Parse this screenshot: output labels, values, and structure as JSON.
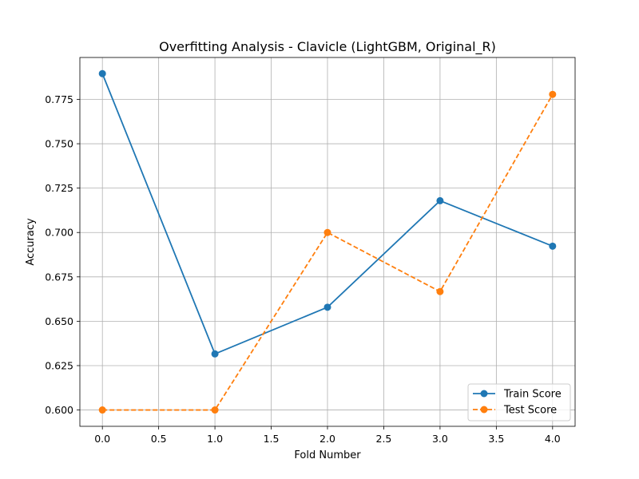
{
  "chart_data": {
    "type": "line",
    "title": "Overfitting Analysis - Clavicle (LightGBM, Original_R)",
    "xlabel": "Fold Number",
    "ylabel": "Accuracy",
    "xlim": [
      -0.2,
      4.2
    ],
    "ylim": [
      0.5908,
      0.7986
    ],
    "xticks": [
      0.0,
      0.5,
      1.0,
      1.5,
      2.0,
      2.5,
      3.0,
      3.5,
      4.0
    ],
    "xtick_labels": [
      "0.0",
      "0.5",
      "1.0",
      "1.5",
      "2.0",
      "2.5",
      "3.0",
      "3.5",
      "4.0"
    ],
    "yticks": [
      0.6,
      0.625,
      0.65,
      0.675,
      0.7,
      0.725,
      0.75,
      0.775
    ],
    "ytick_labels": [
      "0.600",
      "0.625",
      "0.650",
      "0.675",
      "0.700",
      "0.725",
      "0.750",
      "0.775"
    ],
    "grid": true,
    "legend_position": "lower-right",
    "x": [
      0,
      1,
      2,
      3,
      4
    ],
    "series": [
      {
        "name": "Train Score",
        "values": [
          0.7895,
          0.6316,
          0.6579,
          0.7179,
          0.6923
        ],
        "color": "#1f77b4",
        "dash": "solid",
        "marker": "circle"
      },
      {
        "name": "Test Score",
        "values": [
          0.6,
          0.6,
          0.7,
          0.6667,
          0.7778
        ],
        "color": "#ff7f0e",
        "dash": "dashed",
        "marker": "circle"
      }
    ]
  }
}
